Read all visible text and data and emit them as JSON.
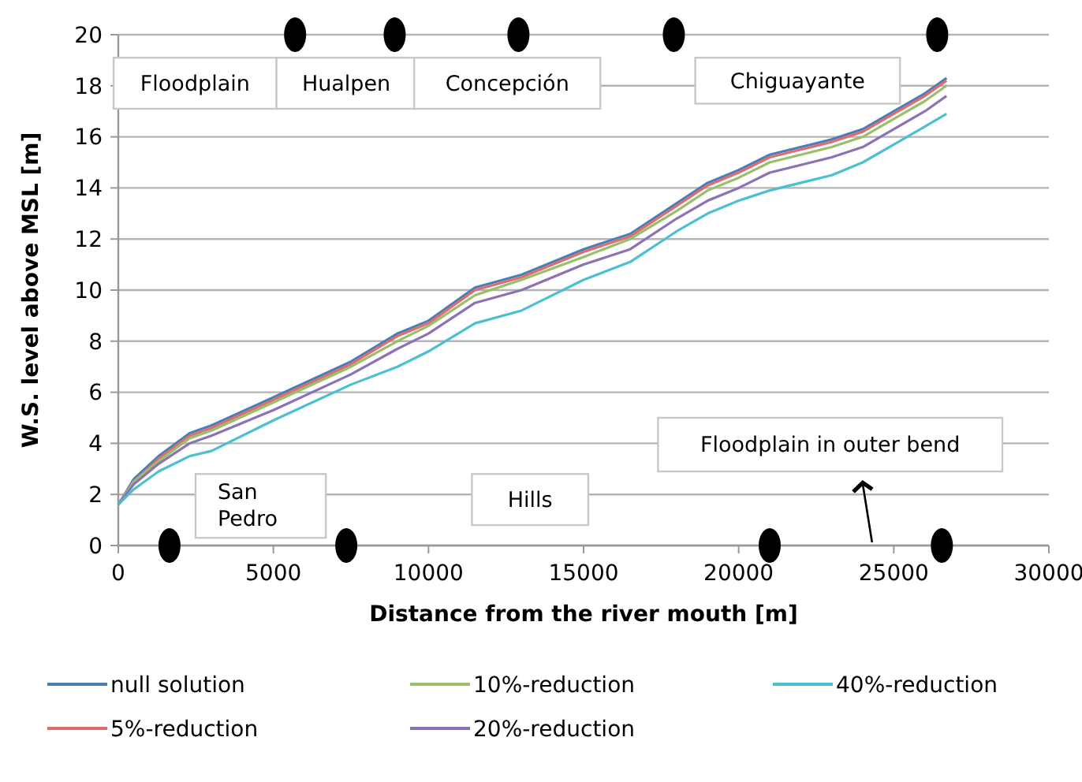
{
  "chart_data": {
    "type": "line",
    "xlabel": "Distance from the river mouth [m]",
    "ylabel": "W.S. level  above MSL [m]",
    "xlim": [
      0,
      30000
    ],
    "xticks": [
      0,
      5000,
      10000,
      15000,
      20000,
      25000,
      30000
    ],
    "ylim": [
      0,
      20
    ],
    "yticks": [
      0,
      2,
      4,
      6,
      8,
      10,
      12,
      14,
      16,
      18,
      20
    ],
    "grid": "y",
    "legend": "bottom",
    "marker": "none",
    "line_style": "solid",
    "x": [
      0,
      500,
      1300,
      2300,
      3000,
      5000,
      7500,
      9000,
      10000,
      11500,
      13000,
      15000,
      16500,
      18000,
      19000,
      20000,
      21000,
      23000,
      24000,
      25000,
      26000,
      26700
    ],
    "series": [
      {
        "name": "null solution",
        "color": "#4a7ebb",
        "values": [
          1.6,
          2.6,
          3.5,
          4.4,
          4.7,
          5.8,
          7.2,
          8.3,
          8.8,
          10.1,
          10.6,
          11.6,
          12.2,
          13.4,
          14.2,
          14.7,
          15.3,
          15.9,
          16.3,
          17.0,
          17.7,
          18.3
        ]
      },
      {
        "name": "5%-reduction",
        "color": "#e06c6c",
        "values": [
          1.6,
          2.5,
          3.4,
          4.3,
          4.6,
          5.7,
          7.1,
          8.2,
          8.7,
          10.0,
          10.5,
          11.5,
          12.1,
          13.3,
          14.1,
          14.6,
          15.2,
          15.8,
          16.2,
          16.9,
          17.6,
          18.2
        ]
      },
      {
        "name": "10%-reduction",
        "color": "#98c06a",
        "values": [
          1.6,
          2.5,
          3.3,
          4.2,
          4.5,
          5.6,
          7.0,
          8.0,
          8.6,
          9.8,
          10.4,
          11.3,
          12.0,
          13.1,
          13.9,
          14.4,
          15.0,
          15.6,
          16.0,
          16.7,
          17.4,
          18.0
        ]
      },
      {
        "name": "20%-reduction",
        "color": "#8c72b4",
        "values": [
          1.6,
          2.4,
          3.2,
          4.0,
          4.3,
          5.3,
          6.7,
          7.7,
          8.3,
          9.5,
          10.0,
          11.0,
          11.6,
          12.8,
          13.5,
          14.0,
          14.6,
          15.2,
          15.6,
          16.3,
          17.0,
          17.6
        ]
      },
      {
        "name": "40%-reduction",
        "color": "#4bc0d0",
        "values": [
          1.6,
          2.2,
          2.9,
          3.5,
          3.7,
          4.9,
          6.3,
          7.0,
          7.6,
          8.7,
          9.2,
          10.4,
          11.1,
          12.3,
          13.0,
          13.5,
          13.9,
          14.5,
          15.0,
          15.7,
          16.4,
          16.9
        ]
      }
    ],
    "annotations": [
      "Floodplain",
      "Hualpen",
      "Concepción",
      "Chiguayante",
      "Floodplain in outer bend",
      "San\nPedro",
      "Hills"
    ]
  }
}
